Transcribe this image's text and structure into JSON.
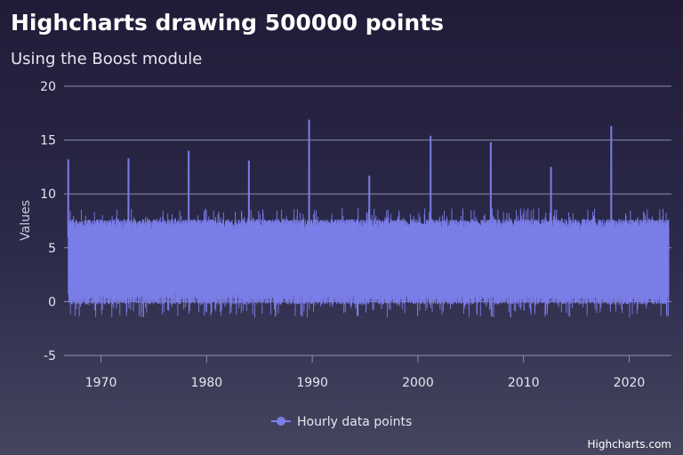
{
  "chart_data": {
    "type": "line",
    "title": "Highcharts drawing 500000 points",
    "subtitle": "Using the Boost module",
    "ylabel": "Values",
    "xlabel": "",
    "xlim": [
      1966.5,
      2024.0
    ],
    "ylim": [
      -5,
      20
    ],
    "y_ticks": [
      -5,
      0,
      5,
      10,
      15,
      20
    ],
    "x_ticks": [
      1970,
      1980,
      1990,
      2000,
      2010,
      2020
    ],
    "grid": true,
    "legend_position": "bottom-center",
    "series": [
      {
        "name": "Hourly data points",
        "color": "#7b7ee8",
        "typical_range": [
          0.5,
          7.0
        ],
        "envelope_min": -1.5,
        "envelope_max": 8.7,
        "spikes": [
          {
            "x": 1966.9,
            "y": 13.2
          },
          {
            "x": 1972.6,
            "y": 13.3
          },
          {
            "x": 1978.3,
            "y": 14.0
          },
          {
            "x": 1984.0,
            "y": 13.1
          },
          {
            "x": 1989.7,
            "y": 16.9
          },
          {
            "x": 1995.4,
            "y": 11.7
          },
          {
            "x": 2001.2,
            "y": 15.4
          },
          {
            "x": 2006.9,
            "y": 14.8
          },
          {
            "x": 2012.6,
            "y": 12.5
          },
          {
            "x": 2018.3,
            "y": 16.3
          }
        ]
      }
    ]
  },
  "legend": {
    "items": [
      "Hourly data points"
    ]
  },
  "credits": "Highcharts.com"
}
